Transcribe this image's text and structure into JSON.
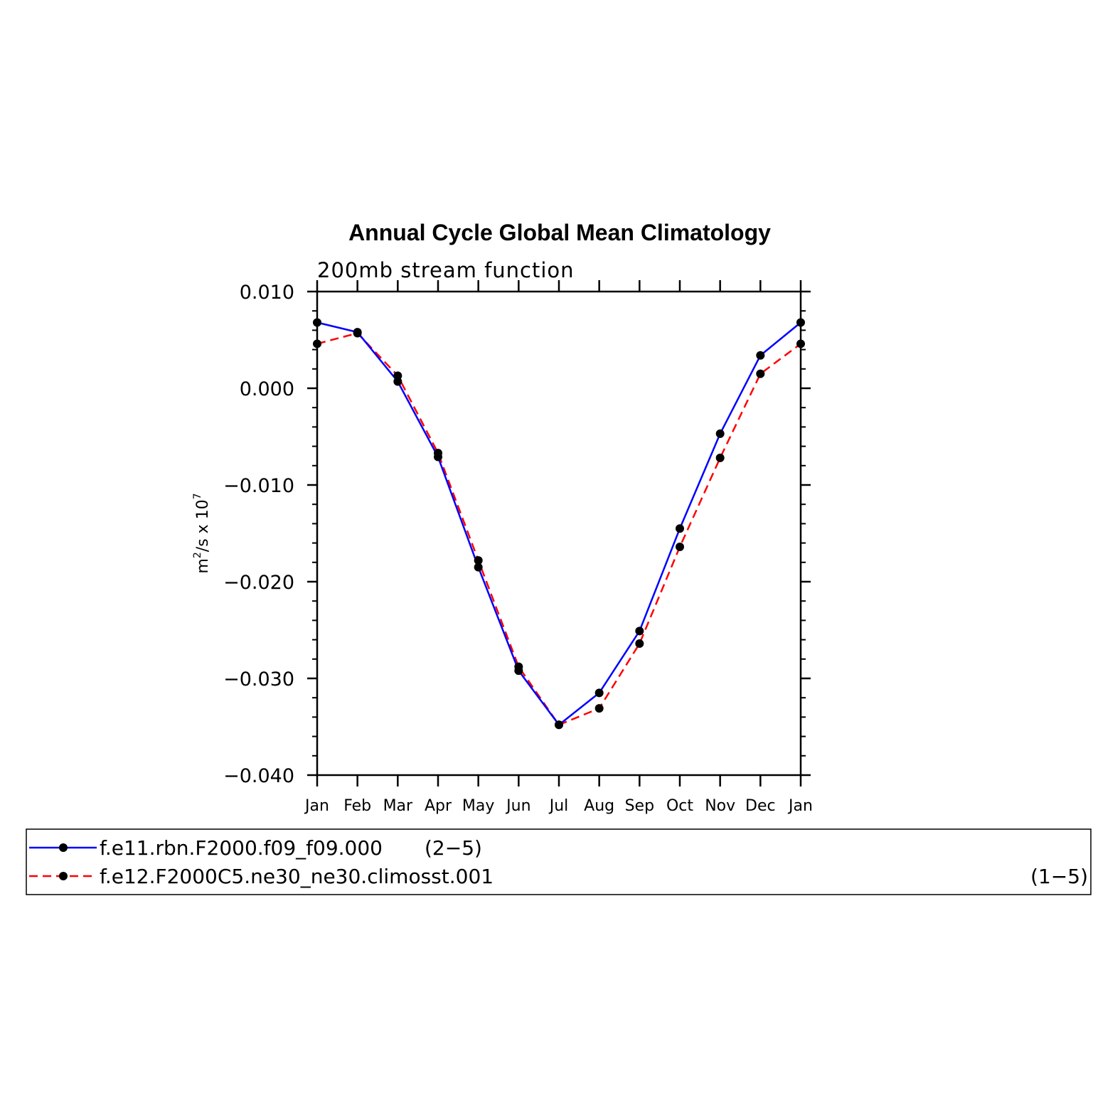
{
  "chart_data": {
    "type": "line",
    "title": "Annual Cycle Global Mean Climatology",
    "subtitle": "200mb stream function",
    "ylabel_base": "m",
    "ylabel_sup1": "2",
    "ylabel_mid": "/s x 10",
    "ylabel_sup2": "7",
    "categories": [
      "Jan",
      "Feb",
      "Mar",
      "Apr",
      "May",
      "Jun",
      "Jul",
      "Aug",
      "Sep",
      "Oct",
      "Nov",
      "Dec",
      "Jan"
    ],
    "ylim": [
      -0.04,
      0.01
    ],
    "yticks": [
      0.01,
      0.0,
      -0.01,
      -0.02,
      -0.03,
      -0.04
    ],
    "ytick_labels": [
      "0.010",
      "0.000",
      "−0.010",
      "−0.020",
      "−0.030",
      "−0.040"
    ],
    "grid": false,
    "legend_placement": "bottom",
    "series": [
      {
        "name": "f.e11.rbn.F2000.f09_f09.000",
        "legend_suffix": "(2−5)",
        "color": "#0000ff",
        "dash": "solid",
        "values": [
          0.0068,
          0.0058,
          0.0007,
          -0.0071,
          -0.0185,
          -0.0292,
          -0.0348,
          -0.0315,
          -0.0251,
          -0.0145,
          -0.0047,
          0.0034,
          0.0068
        ]
      },
      {
        "name": "f.e12.F2000C5.ne30_ne30.climosst.001",
        "legend_suffix": "(1−5)",
        "color": "#ff0000",
        "dash": "dashed",
        "values": [
          0.0046,
          0.0057,
          0.0013,
          -0.0067,
          -0.0178,
          -0.0288,
          -0.0348,
          -0.0331,
          -0.0264,
          -0.0164,
          -0.0072,
          0.0015,
          0.0046
        ]
      }
    ]
  }
}
